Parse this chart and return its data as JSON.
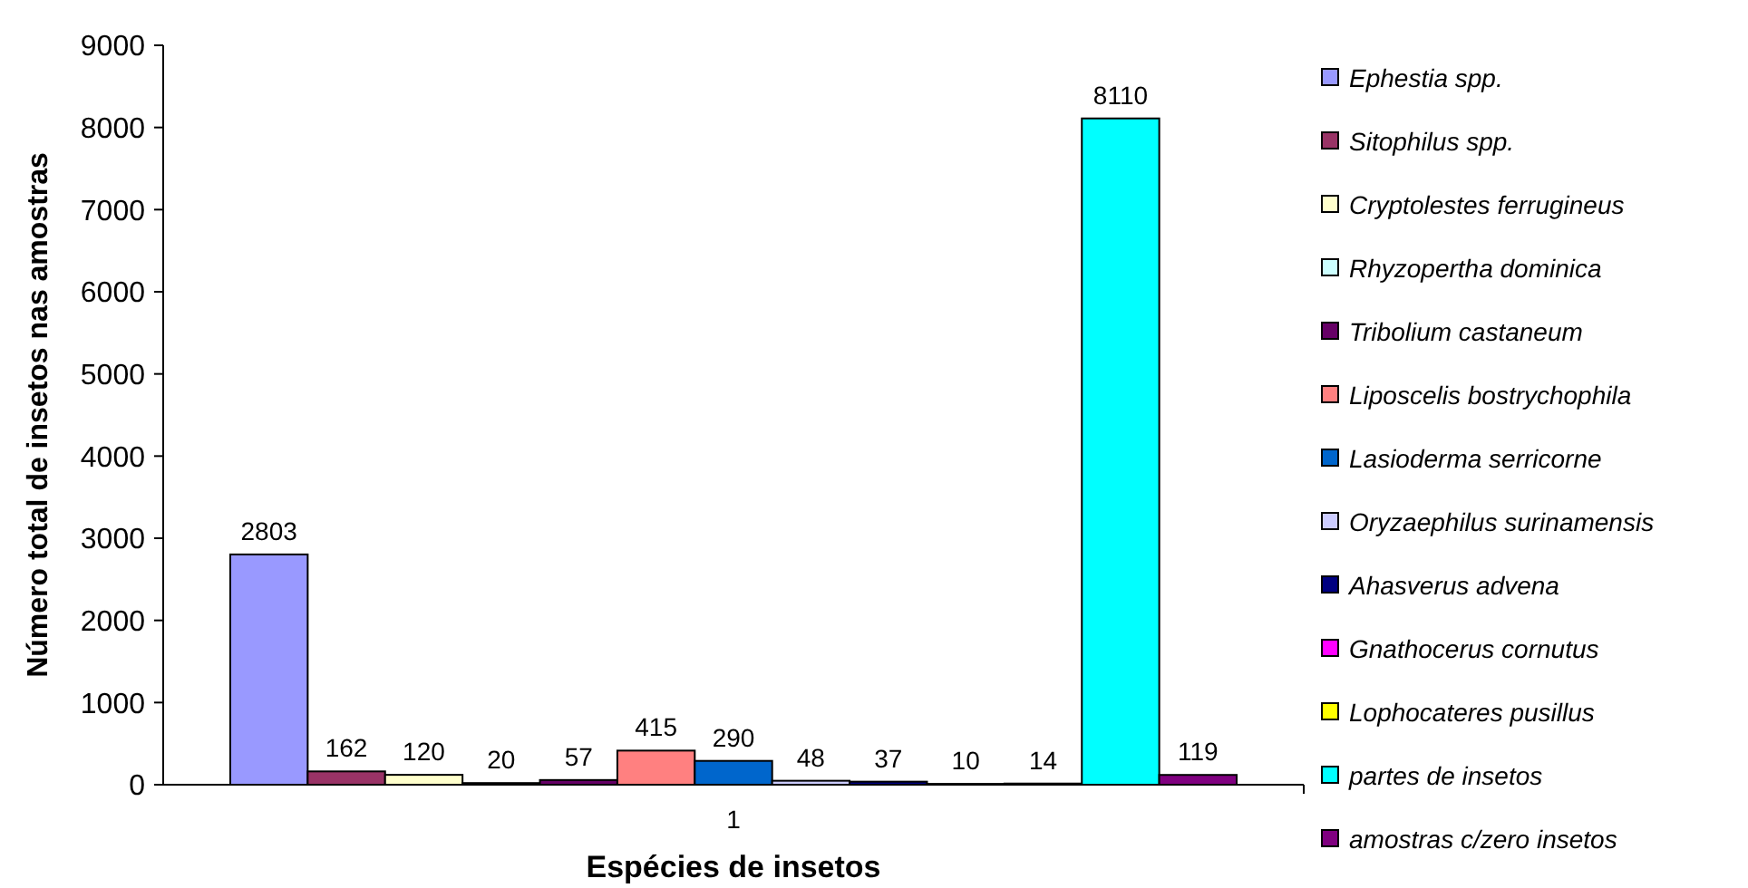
{
  "chart_data": {
    "type": "bar",
    "xlabel": "Espécies de insetos",
    "ylabel": "Número total de insetos nas amostras",
    "categories": [
      "1"
    ],
    "series": [
      {
        "name": "Ephestia spp.",
        "color": "#9999ff",
        "values": [
          2803
        ]
      },
      {
        "name": "Sitophilus spp.",
        "color": "#993366",
        "values": [
          162
        ]
      },
      {
        "name": "Cryptolestes ferrugineus",
        "color": "#ffffcc",
        "values": [
          120
        ]
      },
      {
        "name": "Rhyzopertha dominica",
        "color": "#ccffff",
        "values": [
          20
        ]
      },
      {
        "name": "Tribolium castaneum",
        "color": "#660066",
        "values": [
          57
        ]
      },
      {
        "name": "Liposcelis bostrychophila",
        "color": "#ff8080",
        "values": [
          415
        ]
      },
      {
        "name": "Lasioderma serricorne",
        "color": "#0066cc",
        "values": [
          290
        ]
      },
      {
        "name": "Oryzaephilus surinamensis",
        "color": "#ccccff",
        "values": [
          48
        ]
      },
      {
        "name": "Ahasverus advena",
        "color": "#000080",
        "values": [
          37
        ]
      },
      {
        "name": "Gnathocerus cornutus",
        "color": "#ff00ff",
        "values": [
          10
        ]
      },
      {
        "name": "Lophocateres pusillus",
        "color": "#ffff00",
        "values": [
          14
        ]
      },
      {
        "name": "partes de insetos",
        "color": "#00ffff",
        "values": [
          8110
        ]
      },
      {
        "name": "amostras c/zero insetos",
        "color": "#800080",
        "values": [
          119
        ]
      }
    ],
    "ylim": [
      0,
      9000
    ],
    "yticks": [
      0,
      1000,
      2000,
      3000,
      4000,
      5000,
      6000,
      7000,
      8000,
      9000
    ],
    "data_labels": true,
    "legend": "right",
    "grid": false
  }
}
